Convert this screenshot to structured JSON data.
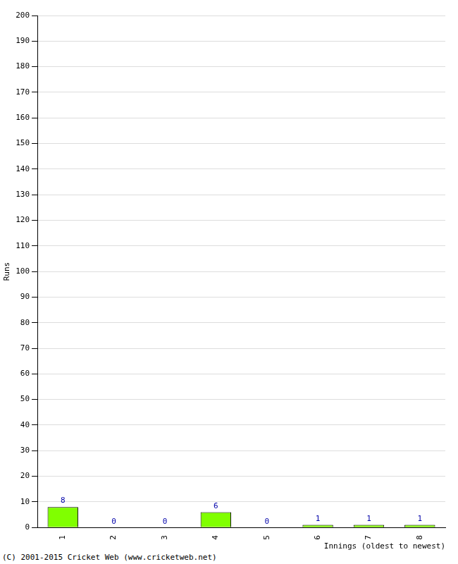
{
  "chart_data": {
    "type": "bar",
    "categories": [
      "1",
      "2",
      "3",
      "4",
      "5",
      "6",
      "7",
      "8"
    ],
    "values": [
      8,
      0,
      0,
      6,
      0,
      1,
      1,
      1
    ],
    "color": "#80ff00",
    "x_label": "Innings (oldest to newest)",
    "y_label": "Runs",
    "ylim": [
      0,
      200
    ],
    "yticks": [
      0,
      10,
      20,
      30,
      40,
      50,
      60,
      70,
      80,
      90,
      100,
      110,
      120,
      130,
      140,
      150,
      160,
      170,
      180,
      190,
      200
    ],
    "grid": true,
    "data_labels": true,
    "annotations": [
      "(C) 2001-2015 Cricket Web (www.cricketweb.net)"
    ]
  }
}
